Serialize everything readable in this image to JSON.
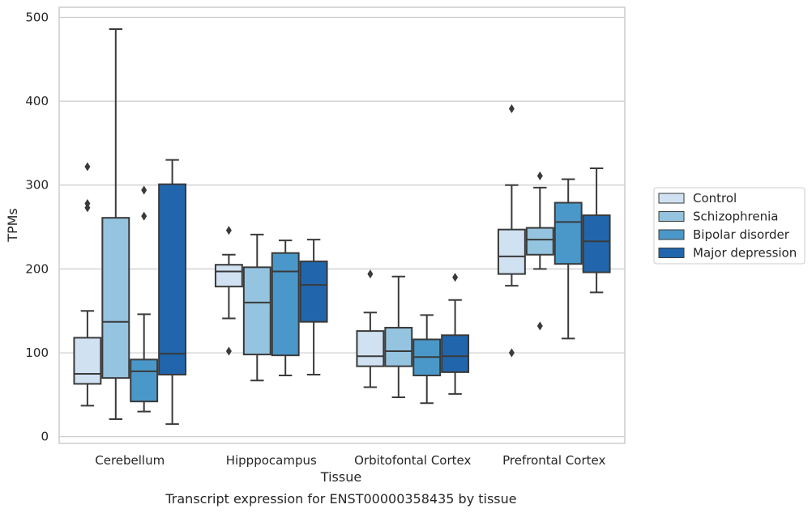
{
  "chart_data": {
    "type": "box",
    "xlabel": "Tissue",
    "ylabel": "TPMs",
    "caption": "Transcript expression for ENST00000358435 by tissue",
    "ylim": [
      -8,
      512
    ],
    "yticks": [
      0,
      100,
      200,
      300,
      400,
      500
    ],
    "grid": true,
    "legend_position": "right",
    "categories": [
      "Cerebellum",
      "Hipppocampus",
      "Orbitofontal Cortex",
      "Prefrontal Cortex"
    ],
    "series": [
      {
        "name": "Control",
        "color": "#d0e1f2",
        "boxes": [
          {
            "whisker_low": 37,
            "q1": 63,
            "median": 75,
            "q3": 118,
            "whisker_high": 150,
            "outliers": [
              322,
              278,
              273
            ]
          },
          {
            "whisker_low": 141,
            "q1": 179,
            "median": 197,
            "q3": 205,
            "whisker_high": 217,
            "outliers": [
              246,
              102
            ]
          },
          {
            "whisker_low": 59,
            "q1": 84,
            "median": 96,
            "q3": 126,
            "whisker_high": 148,
            "outliers": [
              194
            ]
          },
          {
            "whisker_low": 180,
            "q1": 194,
            "median": 215,
            "q3": 247,
            "whisker_high": 300,
            "outliers": [
              391,
              100
            ]
          }
        ]
      },
      {
        "name": "Schizophrenia",
        "color": "#94c4df",
        "boxes": [
          {
            "whisker_low": 21,
            "q1": 70,
            "median": 137,
            "q3": 261,
            "whisker_high": 486,
            "outliers": []
          },
          {
            "whisker_low": 67,
            "q1": 98,
            "median": 160,
            "q3": 202,
            "whisker_high": 241,
            "outliers": []
          },
          {
            "whisker_low": 47,
            "q1": 84,
            "median": 102,
            "q3": 130,
            "whisker_high": 191,
            "outliers": []
          },
          {
            "whisker_low": 200,
            "q1": 217,
            "median": 235,
            "q3": 249,
            "whisker_high": 297,
            "outliers": [
              311,
              132
            ]
          }
        ]
      },
      {
        "name": "Bipolar disorder",
        "color": "#4a98c9",
        "boxes": [
          {
            "whisker_low": 30,
            "q1": 42,
            "median": 78,
            "q3": 92,
            "whisker_high": 146,
            "outliers": [
              294,
              263
            ]
          },
          {
            "whisker_low": 73,
            "q1": 97,
            "median": 197,
            "q3": 219,
            "whisker_high": 234,
            "outliers": []
          },
          {
            "whisker_low": 40,
            "q1": 73,
            "median": 95,
            "q3": 116,
            "whisker_high": 145,
            "outliers": []
          },
          {
            "whisker_low": 117,
            "q1": 206,
            "median": 256,
            "q3": 279,
            "whisker_high": 307,
            "outliers": []
          }
        ]
      },
      {
        "name": "Major depression",
        "color": "#2166ac",
        "boxes": [
          {
            "whisker_low": 15,
            "q1": 74,
            "median": 99,
            "q3": 301,
            "whisker_high": 330,
            "outliers": []
          },
          {
            "whisker_low": 74,
            "q1": 137,
            "median": 181,
            "q3": 209,
            "whisker_high": 235,
            "outliers": []
          },
          {
            "whisker_low": 51,
            "q1": 77,
            "median": 96,
            "q3": 121,
            "whisker_high": 163,
            "outliers": [
              190
            ]
          },
          {
            "whisker_low": 172,
            "q1": 196,
            "median": 233,
            "q3": 264,
            "whisker_high": 320,
            "outliers": []
          }
        ]
      }
    ]
  }
}
